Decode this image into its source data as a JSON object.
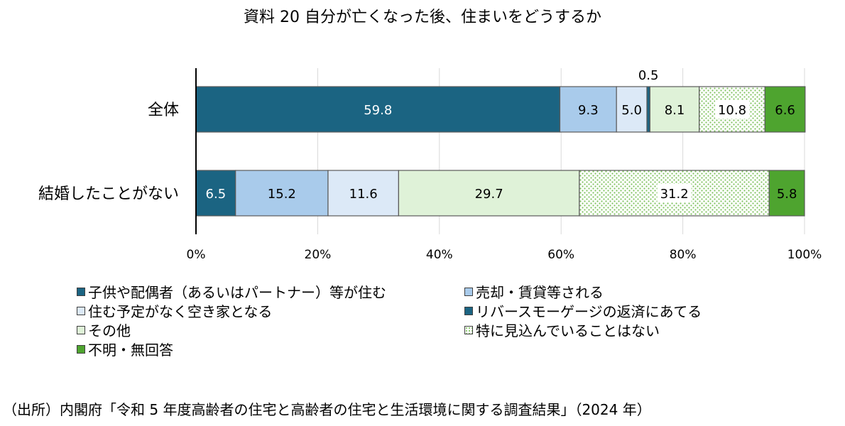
{
  "title": "資料 20  自分が亡くなった後、住まいをどうするか",
  "source": "（出所）内閣府「令和 5 年度高齢者の住宅と高齢者の住宅と生活環境に関する調査結果」（2024 年）",
  "chart_data": {
    "type": "bar",
    "orientation": "horizontal",
    "stacked": true,
    "categories": [
      "全体",
      "結婚したことがない"
    ],
    "series": [
      {
        "name": "子供や配偶者（あるいはパートナー）等が住む",
        "values": [
          59.8,
          6.5
        ],
        "color": "#1b6482",
        "label_color": "#ffffff",
        "pattern": "solid"
      },
      {
        "name": "売却・賃貸等される",
        "values": [
          9.3,
          15.2
        ],
        "color": "#a9cbeb",
        "label_color": "#000000",
        "pattern": "solid"
      },
      {
        "name": "住む予定がなく空き家となる",
        "values": [
          5.0,
          11.6
        ],
        "color": "#dce9f7",
        "label_color": "#000000",
        "pattern": "solid"
      },
      {
        "name": "リバースモーゲージの返済にあてる",
        "values": [
          0.5,
          0.0
        ],
        "color": "#1b6482",
        "label_color": "#000000",
        "pattern": "solid"
      },
      {
        "name": "その他",
        "values": [
          8.1,
          29.7
        ],
        "color": "#dff2d8",
        "label_color": "#000000",
        "pattern": "solid"
      },
      {
        "name": "特に見込んでいることはない",
        "values": [
          10.8,
          31.2
        ],
        "color": "#ffffff",
        "label_color": "#000000",
        "pattern": "dots"
      },
      {
        "name": "不明・無回答",
        "values": [
          6.6,
          5.8
        ],
        "color": "#4ea42f",
        "label_color": "#000000",
        "pattern": "solid"
      }
    ],
    "data_labels": [
      [
        "59.8",
        "9.3",
        "5.0",
        "0.5",
        "8.1",
        "10.8",
        "6.6"
      ],
      [
        "6.5",
        "15.2",
        "11.6",
        "",
        "29.7",
        "31.2",
        "5.8"
      ]
    ],
    "xlim": [
      0,
      100
    ],
    "x_ticks": [
      "0%",
      "20%",
      "40%",
      "60%",
      "80%",
      "100%"
    ],
    "x_tick_values": [
      0,
      20,
      40,
      60,
      80,
      100
    ],
    "grid": true,
    "legend_position": "bottom",
    "xlabel": "",
    "ylabel": ""
  }
}
